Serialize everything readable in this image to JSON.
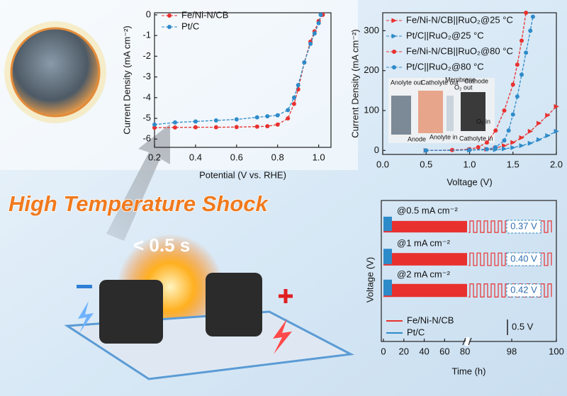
{
  "illustration": {
    "headline": "High Temperature Shock",
    "duration": "< 0.5 s"
  },
  "chart_data": [
    {
      "type": "line",
      "x_label": "Potential (V vs. RHE)",
      "y_label": "Current Density (mA cm⁻²)",
      "xlim": [
        0.2,
        1.06
      ],
      "xticks": [
        0.2,
        0.4,
        0.6,
        0.8,
        {
          "value": 1,
          "label": "1.0"
        }
      ],
      "ylim": [
        -6.4,
        0.1
      ],
      "yticks": [
        0,
        -1,
        -2,
        -3,
        -4,
        -5,
        -6
      ],
      "legend": "upper left",
      "series": [
        {
          "name": "Fe/Ni-N/CB",
          "color": "#e8312f",
          "marker": "circle",
          "x": [
            0.2,
            0.3,
            0.4,
            0.5,
            0.6,
            0.7,
            0.75,
            0.8,
            0.85,
            0.88,
            0.9,
            0.93,
            0.96,
            0.98,
            1.0,
            1.02
          ],
          "values": [
            -5.45,
            -5.44,
            -5.43,
            -5.43,
            -5.42,
            -5.4,
            -5.38,
            -5.3,
            -5.0,
            -4.3,
            -3.6,
            -2.3,
            -1.3,
            -0.8,
            -0.3,
            0
          ]
        },
        {
          "name": "Pt/C",
          "color": "#2e8bc9",
          "marker": "circle",
          "x": [
            0.2,
            0.3,
            0.4,
            0.5,
            0.6,
            0.7,
            0.75,
            0.8,
            0.85,
            0.88,
            0.9,
            0.93,
            0.96,
            0.98,
            1.0,
            1.01
          ],
          "values": [
            -5.3,
            -5.2,
            -5.15,
            -5.1,
            -5.05,
            -4.95,
            -4.9,
            -4.85,
            -4.6,
            -4.0,
            -3.4,
            -2.3,
            -1.4,
            -0.9,
            -0.4,
            0
          ]
        }
      ]
    },
    {
      "type": "line",
      "x_label": "Voltage (V)",
      "y_label": "Current Density (mA cm⁻²)",
      "xlim": [
        0,
        2
      ],
      "xticks": [
        {
          "value": 0,
          "label": "0.0"
        },
        0.5,
        {
          "value": 1,
          "label": "1.0"
        },
        1.5,
        {
          "value": 2,
          "label": "2.0"
        }
      ],
      "ylim": [
        -10,
        345
      ],
      "yticks": [
        0,
        100,
        200,
        300
      ],
      "legend": "upper left",
      "inset_labels": [
        "Anolyte out",
        "Catholyte out",
        "Membrane",
        "O₂ out",
        "Cathode",
        "Anode",
        "Anolyte in",
        "Catholyte in",
        "O₂ in"
      ],
      "series": [
        {
          "name": "Fe/Ni-N/CB||RuO₂@25 °C",
          "color": "#e8312f",
          "marker": "triangle",
          "x": [
            0.5,
            1.0,
            1.2,
            1.3,
            1.4,
            1.5,
            1.6,
            1.7,
            1.8,
            1.9,
            2.0
          ],
          "values": [
            0,
            1,
            3,
            6,
            12,
            20,
            32,
            48,
            68,
            88,
            110
          ]
        },
        {
          "name": "Pt/C||RuO₂@25 °C",
          "color": "#2e8bc9",
          "marker": "triangle",
          "x": [
            0.5,
            1.0,
            1.3,
            1.4,
            1.5,
            1.6,
            1.7,
            1.8,
            1.9,
            2.0
          ],
          "values": [
            0,
            1,
            2,
            4,
            7,
            12,
            18,
            27,
            37,
            48
          ]
        },
        {
          "name": "Fe/Ni-N/CB||RuO₂@80 °C",
          "color": "#e8312f",
          "marker": "circle",
          "x": [
            0.5,
            0.8,
            1.0,
            1.1,
            1.2,
            1.3,
            1.4,
            1.5,
            1.55,
            1.6,
            1.65
          ],
          "values": [
            0,
            1,
            3,
            8,
            20,
            50,
            100,
            165,
            215,
            275,
            345
          ]
        },
        {
          "name": "Pt/C||RuO₂@80 °C",
          "color": "#2e8bc9",
          "marker": "circle",
          "x": [
            0.5,
            1.0,
            1.2,
            1.3,
            1.4,
            1.45,
            1.5,
            1.55,
            1.6,
            1.65,
            1.7,
            1.73
          ],
          "values": [
            0,
            1,
            3,
            8,
            25,
            50,
            90,
            135,
            190,
            245,
            300,
            335
          ]
        }
      ]
    },
    {
      "type": "cycling",
      "x_label": "Time (h)",
      "y_label": "Voltage (V)",
      "xlim_segments": [
        [
          0,
          82
        ],
        [
          96,
          100
        ]
      ],
      "xticks": [
        0,
        20,
        40,
        60,
        80,
        98,
        100
      ],
      "series": [
        {
          "name": "Fe/Ni-N/CB",
          "color": "#e8312f"
        },
        {
          "name": "Pt/C",
          "color": "#2e8bc9"
        }
      ],
      "current_labels": [
        "@0.5 mA cm⁻²",
        "@1 mA cm⁻²",
        "@2 mA cm⁻²"
      ],
      "voltage_gaps": [
        0.37,
        0.4,
        0.42
      ],
      "value_labels": [
        "0.37 V",
        "0.40 V",
        "0.42 V"
      ],
      "scale_bar": {
        "value": 0.5,
        "label": "0.5 V"
      }
    }
  ]
}
